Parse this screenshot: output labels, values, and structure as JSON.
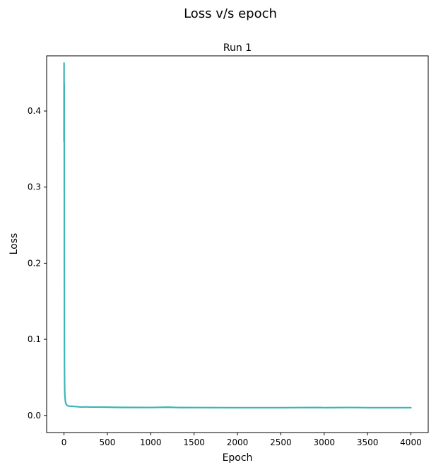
{
  "figure": {
    "suptitle": "Loss v/s epoch"
  },
  "chart_data": {
    "type": "line",
    "title": "Run 1",
    "xlabel": "Epoch",
    "ylabel": "Loss",
    "xlim": [
      -200,
      4200
    ],
    "ylim": [
      -0.0225,
      0.4725
    ],
    "xticks": [
      0,
      500,
      1000,
      1500,
      2000,
      2500,
      3000,
      3500,
      4000
    ],
    "xtick_labels": [
      "0",
      "500",
      "1000",
      "1500",
      "2000",
      "2500",
      "3000",
      "3500",
      "4000"
    ],
    "yticks": [
      0.0,
      0.1,
      0.2,
      0.3,
      0.4
    ],
    "ytick_labels": [
      "0.0",
      "0.1",
      "0.2",
      "0.3",
      "0.4"
    ],
    "grid": false,
    "series": [
      {
        "color": "#3cb4b8",
        "x": [
          0,
          1,
          2,
          3,
          4,
          5,
          6,
          8,
          10,
          15,
          20,
          30,
          40,
          60,
          80,
          100,
          150,
          200,
          250,
          300,
          400,
          500,
          600,
          800,
          1000,
          1200,
          1300,
          1500,
          2000,
          2500,
          2950,
          3000,
          3300,
          3500,
          4000
        ],
        "y": [
          0.36,
          0.463,
          0.37,
          0.436,
          0.2,
          0.1,
          0.06,
          0.035,
          0.027,
          0.02,
          0.016,
          0.014,
          0.013,
          0.012,
          0.012,
          0.012,
          0.0115,
          0.011,
          0.0112,
          0.011,
          0.011,
          0.0108,
          0.0106,
          0.0105,
          0.0104,
          0.0108,
          0.0104,
          0.0103,
          0.0102,
          0.0102,
          0.0104,
          0.0102,
          0.0104,
          0.0102,
          0.0102
        ]
      }
    ]
  }
}
